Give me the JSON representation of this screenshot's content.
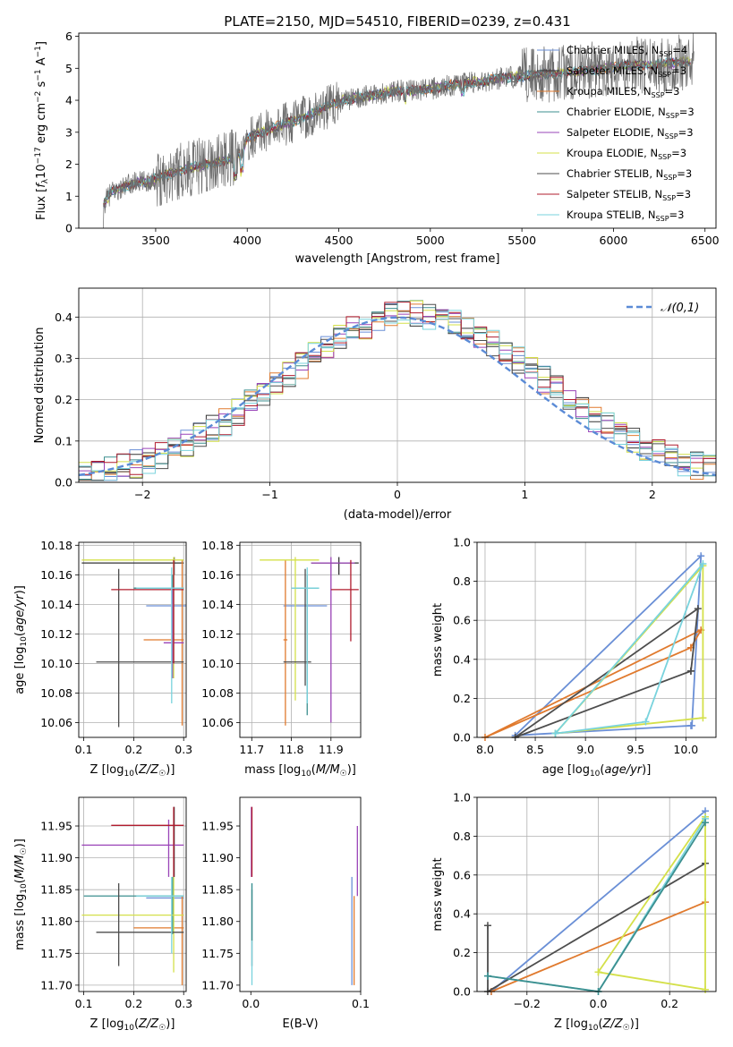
{
  "figure_title": "PLATE=2150, MJD=54510, FIBERID=0239, z=0.431",
  "models": [
    {
      "name": "Chabrier MILES",
      "n": "4",
      "color": "#6a8fd6"
    },
    {
      "name": "Salpeter MILES",
      "n": "3",
      "color": "#333333"
    },
    {
      "name": "Kroupa MILES",
      "n": "3",
      "color": "#e07a2e"
    },
    {
      "name": "Chabrier ELODIE",
      "n": "3",
      "color": "#3c8f8f"
    },
    {
      "name": "Salpeter ELODIE",
      "n": "3",
      "color": "#9a44b8"
    },
    {
      "name": "Kroupa ELODIE",
      "n": "3",
      "color": "#d4e04a"
    },
    {
      "name": "Chabrier STELIB",
      "n": "3",
      "color": "#4d4d4d"
    },
    {
      "name": "Salpeter STELIB",
      "n": "3",
      "color": "#b01c2e"
    },
    {
      "name": "Kroupa STELIB",
      "n": "3",
      "color": "#79d3dd"
    }
  ],
  "chart_data": [
    {
      "id": "spectrum",
      "type": "line",
      "title": "PLATE=2150, MJD=54510, FIBERID=0239, z=0.431",
      "xlabel": "wavelength [Angstrom, rest frame]",
      "ylabel": "Flux [f_λ 10^-17 erg cm^-2 s^-1 A^-1]",
      "xlim": [
        3080,
        6560
      ],
      "ylim": [
        0,
        6.1
      ],
      "xticks": [
        3500,
        4000,
        4500,
        5000,
        5500,
        6000,
        6500
      ],
      "yticks": [
        0,
        1,
        2,
        3,
        4,
        5,
        6
      ],
      "continuum_knots": {
        "x": [
          3200,
          3260,
          3300,
          3350,
          3400,
          3450,
          3500,
          3600,
          3700,
          3800,
          3900,
          3960,
          4000,
          4100,
          4200,
          4300,
          4400,
          4500,
          4600,
          4700,
          4800,
          4900,
          5000,
          5100,
          5200,
          5300,
          5400,
          5500,
          5600,
          5700,
          5800,
          5900,
          6000,
          6100,
          6200,
          6300,
          6400
        ],
        "y": [
          0.6,
          1.15,
          1.2,
          1.35,
          1.45,
          1.45,
          1.55,
          1.75,
          1.9,
          2.0,
          2.15,
          2.3,
          2.8,
          3.05,
          3.25,
          3.45,
          3.7,
          3.95,
          4.1,
          4.15,
          4.3,
          4.3,
          4.35,
          4.45,
          4.55,
          4.6,
          4.7,
          4.75,
          4.8,
          4.85,
          4.9,
          4.95,
          5.05,
          5.1,
          5.1,
          5.15,
          5.2
        ]
      },
      "legend_position": "upper right",
      "grid": false
    },
    {
      "id": "residuals",
      "type": "bar",
      "xlabel": "(data-model)/error",
      "ylabel": "Normed distribution",
      "xlim": [
        -2.5,
        2.5
      ],
      "ylim": [
        0,
        0.47
      ],
      "xticks": [
        -2,
        -1,
        0,
        1,
        2
      ],
      "yticks": [
        0.0,
        0.1,
        0.2,
        0.3,
        0.4
      ],
      "bin_edges_start": -2.5,
      "bin_width": 0.1,
      "reference_curve": "normal(0,1)",
      "reference_label": "𝒩(0,1)",
      "legend_position": "upper right",
      "grid": true
    },
    {
      "id": "age_vs_Z",
      "type": "scatter",
      "xlabel": "Z [log10(Z/Z☉)]",
      "ylabel": "age  [log10(age/yr)]",
      "xlim": [
        0.09,
        0.305
      ],
      "ylim": [
        10.05,
        10.182
      ],
      "xticks": [
        0.1,
        0.2,
        0.3
      ],
      "yticks": [
        10.06,
        10.08,
        10.1,
        10.12,
        10.14,
        10.16,
        10.18
      ],
      "grid": true,
      "points": [
        {
          "m": 0,
          "x": 0.27,
          "xe": [
            0.225,
            0.305
          ],
          "y": 10.139,
          "ye": [
            10.139,
            10.139
          ]
        },
        {
          "m": 1,
          "x": 0.281,
          "xe": [
            0.096,
            0.3
          ],
          "y": 10.168,
          "ye": [
            10.16,
            10.172
          ]
        },
        {
          "m": 2,
          "x": 0.297,
          "xe": [
            0.22,
            0.3
          ],
          "y": 10.116,
          "ye": [
            10.058,
            10.17
          ]
        },
        {
          "m": 3,
          "x": 0.278,
          "xe": [
            0.2,
            0.3
          ],
          "y": 10.151,
          "ye": [
            10.141,
            10.16
          ]
        },
        {
          "m": 4,
          "x": 0.278,
          "xe": [
            0.26,
            0.3
          ],
          "y": 10.114,
          "ye": [
            10.09,
            10.151
          ]
        },
        {
          "m": 5,
          "x": 0.28,
          "xe": [
            0.096,
            0.3
          ],
          "y": 10.17,
          "ye": [
            10.09,
            10.172
          ]
        },
        {
          "m": 6,
          "x": 0.17,
          "xe": [
            0.125,
            0.3
          ],
          "y": 10.101,
          "ye": [
            10.057,
            10.164
          ]
        },
        {
          "m": 7,
          "x": 0.28,
          "xe": [
            0.155,
            0.3
          ],
          "y": 10.15,
          "ye": [
            10.1,
            10.17
          ]
        },
        {
          "m": 8,
          "x": 0.276,
          "xe": [
            0.205,
            0.3
          ],
          "y": 10.151,
          "ye": [
            10.073,
            10.165
          ]
        }
      ]
    },
    {
      "id": "age_vs_mass",
      "type": "scatter",
      "xlabel": "mass [log10(M/M☉)]",
      "ylabel": "",
      "xlim": [
        11.67,
        11.975
      ],
      "ylim": [
        10.05,
        10.182
      ],
      "xticks": [
        11.7,
        11.8,
        11.9
      ],
      "yticks": [
        10.06,
        10.08,
        10.1,
        10.12,
        10.14,
        10.16,
        10.18
      ],
      "grid": true,
      "points": [
        {
          "m": 0,
          "x": 11.835,
          "xe": [
            11.78,
            11.89
          ],
          "y": 10.139,
          "ye": [
            10.139,
            10.139
          ]
        },
        {
          "m": 1,
          "x": 11.92,
          "xe": [
            11.85,
            11.97
          ],
          "y": 10.168,
          "ye": [
            10.16,
            10.172
          ]
        },
        {
          "m": 2,
          "x": 11.785,
          "xe": [
            11.78,
            11.79
          ],
          "y": 10.116,
          "ye": [
            10.058,
            10.17
          ]
        },
        {
          "m": 3,
          "x": 11.84,
          "xe": [
            11.8,
            11.87
          ],
          "y": 10.151,
          "ye": [
            10.065,
            10.16
          ]
        },
        {
          "m": 4,
          "x": 11.9,
          "xe": [
            11.85,
            11.96
          ],
          "y": 10.168,
          "ye": [
            10.06,
            10.172
          ]
        },
        {
          "m": 5,
          "x": 11.81,
          "xe": [
            11.72,
            11.87
          ],
          "y": 10.17,
          "ye": [
            10.075,
            10.172
          ]
        },
        {
          "m": 6,
          "x": 11.835,
          "xe": [
            11.78,
            11.85
          ],
          "y": 10.101,
          "ye": [
            10.085,
            10.164
          ]
        },
        {
          "m": 7,
          "x": 11.95,
          "xe": [
            11.9,
            11.97
          ],
          "y": 10.15,
          "ye": [
            10.115,
            10.17
          ]
        },
        {
          "m": 8,
          "x": 11.84,
          "xe": [
            11.8,
            11.87
          ],
          "y": 10.151,
          "ye": [
            10.073,
            10.165
          ]
        }
      ]
    },
    {
      "id": "weight_vs_age",
      "type": "line",
      "xlabel": "age  [log10(age/yr)]",
      "ylabel": "mass weight",
      "xlim": [
        7.92,
        10.3
      ],
      "ylim": [
        0,
        1.0
      ],
      "xticks": [
        8.0,
        8.5,
        9.0,
        9.5,
        10.0
      ],
      "yticks": [
        0.0,
        0.2,
        0.4,
        0.6,
        0.8,
        1.0
      ],
      "grid": true,
      "series": [
        {
          "m": 0,
          "x": [
            10.05,
            8.3,
            10.15,
            10.06
          ],
          "y": [
            0.06,
            0.01,
            0.93,
            0.06
          ]
        },
        {
          "m": 2,
          "x": [
            10.05,
            8.0,
            10.15,
            10.05
          ],
          "y": [
            0.46,
            0.0,
            0.55,
            0.46
          ]
        },
        {
          "m": 6,
          "x": [
            10.05,
            8.3,
            10.12,
            10.05
          ],
          "y": [
            0.34,
            0.0,
            0.66,
            0.34
          ]
        },
        {
          "m": 5,
          "x": [
            8.7,
            10.17,
            10.17,
            8.7
          ],
          "y": [
            0.02,
            0.88,
            0.1,
            0.02
          ]
        },
        {
          "m": 8,
          "x": [
            8.7,
            9.6,
            10.17,
            8.7
          ],
          "y": [
            0.02,
            0.08,
            0.89,
            0.02
          ]
        }
      ]
    },
    {
      "id": "mass_vs_Z",
      "type": "scatter",
      "xlabel": "Z [log10(Z/Z☉)]",
      "ylabel": "mass [log10(M/M☉)]",
      "xlim": [
        0.09,
        0.305
      ],
      "ylim": [
        11.69,
        11.995
      ],
      "xticks": [
        0.1,
        0.2,
        0.3
      ],
      "yticks": [
        11.7,
        11.75,
        11.8,
        11.85,
        11.9,
        11.95
      ],
      "grid": true,
      "points": [
        {
          "m": 0,
          "x": 0.27,
          "xe": [
            0.225,
            0.3
          ],
          "y": 11.837,
          "ye": [
            11.837,
            11.837
          ]
        },
        {
          "m": 1,
          "x": 0.281,
          "xe": [
            0.281,
            0.281
          ],
          "y": 11.95,
          "ye": [
            11.87,
            11.98
          ]
        },
        {
          "m": 2,
          "x": 0.297,
          "xe": [
            0.2,
            0.3
          ],
          "y": 11.79,
          "ye": [
            11.7,
            11.84
          ]
        },
        {
          "m": 3,
          "x": 0.278,
          "xe": [
            0.1,
            0.3
          ],
          "y": 11.84,
          "ye": [
            11.78,
            11.87
          ]
        },
        {
          "m": 4,
          "x": 0.27,
          "xe": [
            0.096,
            0.3
          ],
          "y": 11.92,
          "ye": [
            11.87,
            11.96
          ]
        },
        {
          "m": 5,
          "x": 0.28,
          "xe": [
            0.096,
            0.3
          ],
          "y": 11.81,
          "ye": [
            11.72,
            11.87
          ]
        },
        {
          "m": 6,
          "x": 0.17,
          "xe": [
            0.125,
            0.3
          ],
          "y": 11.783,
          "ye": [
            11.73,
            11.86
          ]
        },
        {
          "m": 7,
          "x": 0.28,
          "xe": [
            0.155,
            0.3
          ],
          "y": 11.951,
          "ye": [
            11.87,
            11.98
          ]
        },
        {
          "m": 8,
          "x": 0.276,
          "xe": [
            0.205,
            0.3
          ],
          "y": 11.84,
          "ye": [
            11.75,
            11.87
          ]
        }
      ]
    },
    {
      "id": "mass_vs_ebv",
      "type": "scatter",
      "xlabel": "E(B-V)",
      "ylabel": "",
      "xlim": [
        -0.01,
        0.1
      ],
      "ylim": [
        11.69,
        11.995
      ],
      "xticks": [
        0.0,
        0.1
      ],
      "yticks": [
        11.7,
        11.75,
        11.8,
        11.85,
        11.9,
        11.95
      ],
      "grid": false,
      "points": [
        {
          "m": 0,
          "x": 0.092,
          "xe": [
            0.092,
            0.092
          ],
          "y": 11.78,
          "ye": [
            11.7,
            11.87
          ]
        },
        {
          "m": 2,
          "x": 0.094,
          "xe": [
            0.094,
            0.094
          ],
          "y": 11.79,
          "ye": [
            11.7,
            11.84
          ]
        },
        {
          "m": 4,
          "x": 0.0005,
          "xe": [
            0.0005,
            0.0005
          ],
          "y": 11.93,
          "ye": [
            11.87,
            11.98
          ]
        },
        {
          "m": 7,
          "x": 0.001,
          "xe": [
            0.001,
            0.001
          ],
          "y": 11.92,
          "ye": [
            11.87,
            11.98
          ]
        },
        {
          "m": 6,
          "x": 0.001,
          "xe": [
            0.001,
            0.001
          ],
          "y": 11.78,
          "ye": [
            11.73,
            11.85
          ]
        },
        {
          "m": 8,
          "x": 0.001,
          "xe": [
            0.001,
            0.001
          ],
          "y": 11.8,
          "ye": [
            11.7,
            11.86
          ]
        },
        {
          "m": 3,
          "x": 0.001,
          "xe": [
            0.001,
            0.001
          ],
          "y": 11.82,
          "ye": [
            11.77,
            11.86
          ]
        },
        {
          "m": 4,
          "x": 0.097,
          "xe": [
            0.097,
            0.097
          ],
          "y": 11.9,
          "ye": [
            11.84,
            11.95
          ]
        }
      ]
    },
    {
      "id": "weight_vs_Z",
      "type": "line",
      "xlabel": "Z [log10(Z/Z☉)]",
      "ylabel": "mass weight",
      "xlim": [
        -0.34,
        0.33
      ],
      "ylim": [
        0,
        1.0
      ],
      "xticks": [
        -0.2,
        0.0,
        0.2
      ],
      "yticks": [
        0.0,
        0.2,
        0.4,
        0.6,
        0.8,
        1.0
      ],
      "grid": true,
      "series": [
        {
          "m": 0,
          "x": [
            -0.3,
            0.3
          ],
          "y": [
            0.0,
            0.93
          ]
        },
        {
          "m": 2,
          "x": [
            -0.3,
            0.3
          ],
          "y": [
            0.0,
            0.46
          ]
        },
        {
          "m": 6,
          "x": [
            -0.31,
            -0.31,
            0.3
          ],
          "y": [
            0.34,
            0.0,
            0.66
          ]
        },
        {
          "m": 5,
          "x": [
            0.0,
            0.3,
            0.3,
            0.0
          ],
          "y": [
            0.1,
            0.9,
            0.01,
            0.1
          ]
        },
        {
          "m": 8,
          "x": [
            -0.31,
            0.0,
            0.3
          ],
          "y": [
            0.08,
            0.0,
            0.89
          ]
        },
        {
          "m": 3,
          "x": [
            -0.31,
            0.0,
            0.3
          ],
          "y": [
            0.08,
            0.0,
            0.87
          ]
        }
      ]
    }
  ]
}
